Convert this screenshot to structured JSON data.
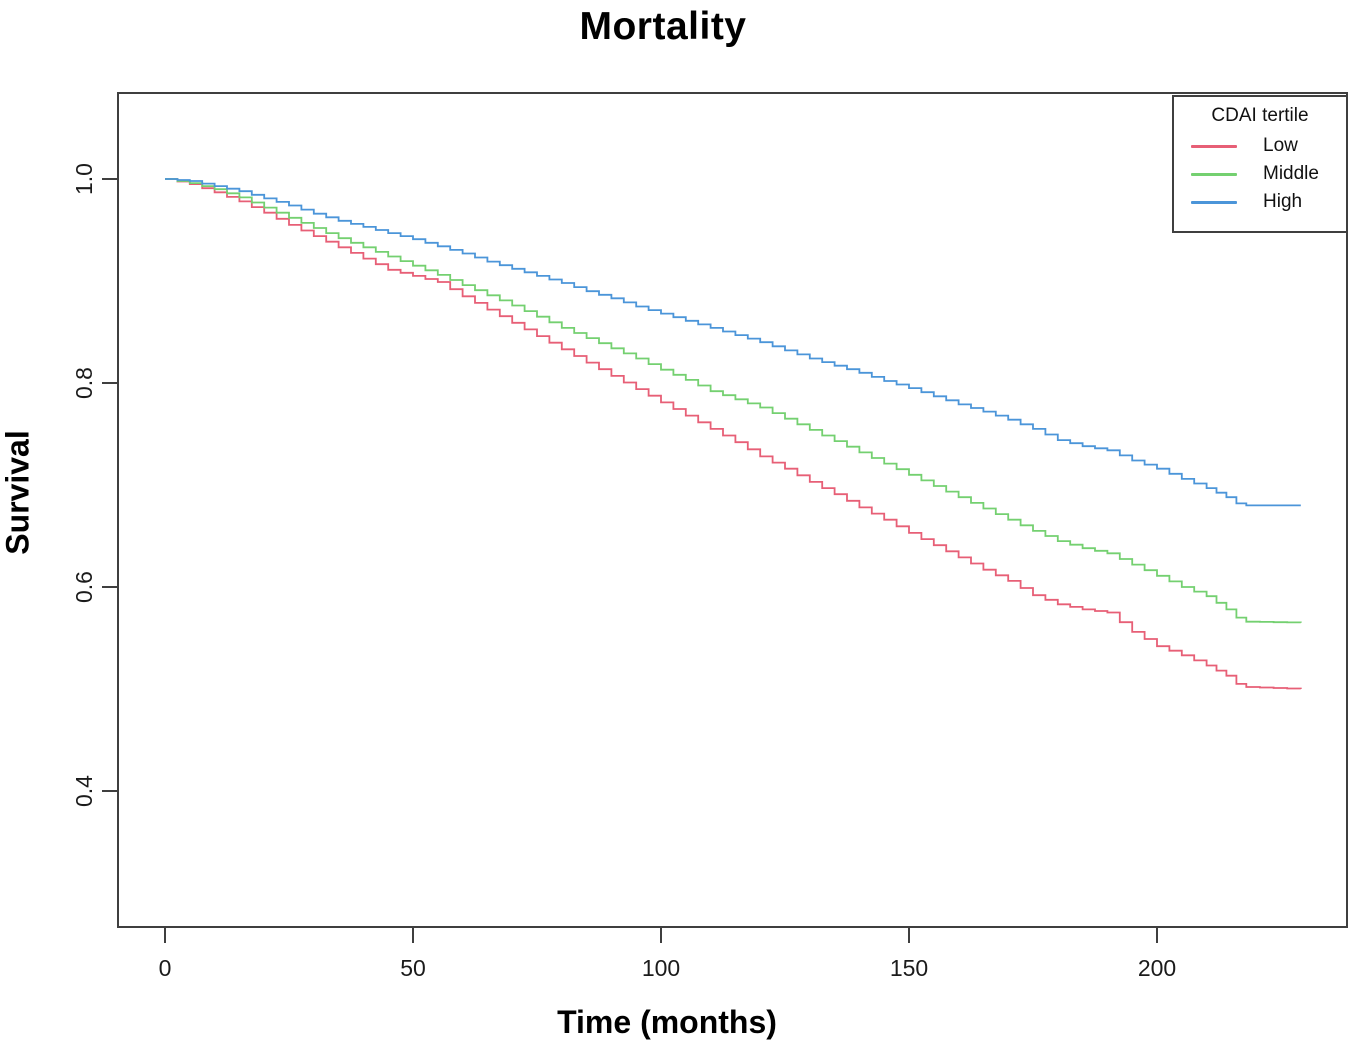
{
  "title": "Mortality",
  "chart_data": {
    "type": "line",
    "subtype": "kaplan-meier-step-curves",
    "title": "Mortality",
    "xlabel": "Time (months)",
    "ylabel": "Survival",
    "grid": false,
    "xlim": [
      0,
      229
    ],
    "ylim": [
      0.27,
      1.08
    ],
    "x_ticks": [
      {
        "value": 0,
        "label": "0"
      },
      {
        "value": 50,
        "label": "50"
      },
      {
        "value": 100,
        "label": "100"
      },
      {
        "value": 150,
        "label": "150"
      },
      {
        "value": 200,
        "label": "200"
      }
    ],
    "y_ticks": [
      {
        "value": 1.0,
        "label": "1.0"
      },
      {
        "value": 0.8,
        "label": "0.8"
      },
      {
        "value": 0.6,
        "label": "0.6"
      },
      {
        "value": 0.4,
        "label": "0.4"
      }
    ],
    "legend": {
      "title": "CDAI tertile",
      "position": "top-right"
    },
    "series": [
      {
        "name": "Low",
        "color": "#e75f76",
        "points": [
          [
            0,
            1.0
          ],
          [
            5,
            0.995
          ],
          [
            10,
            0.987
          ],
          [
            15,
            0.978
          ],
          [
            20,
            0.967
          ],
          [
            25,
            0.955
          ],
          [
            30,
            0.944
          ],
          [
            35,
            0.933
          ],
          [
            40,
            0.922
          ],
          [
            45,
            0.911
          ],
          [
            50,
            0.905
          ],
          [
            55,
            0.899
          ],
          [
            60,
            0.885
          ],
          [
            65,
            0.872
          ],
          [
            70,
            0.859
          ],
          [
            75,
            0.846
          ],
          [
            80,
            0.833
          ],
          [
            85,
            0.82
          ],
          [
            90,
            0.807
          ],
          [
            95,
            0.794
          ],
          [
            100,
            0.781
          ],
          [
            105,
            0.768
          ],
          [
            110,
            0.755
          ],
          [
            115,
            0.742
          ],
          [
            120,
            0.728
          ],
          [
            125,
            0.716
          ],
          [
            130,
            0.703
          ],
          [
            135,
            0.691
          ],
          [
            140,
            0.678
          ],
          [
            145,
            0.666
          ],
          [
            150,
            0.653
          ],
          [
            155,
            0.641
          ],
          [
            160,
            0.629
          ],
          [
            165,
            0.617
          ],
          [
            170,
            0.606
          ],
          [
            175,
            0.592
          ],
          [
            180,
            0.583
          ],
          [
            185,
            0.578
          ],
          [
            190,
            0.575
          ],
          [
            195,
            0.556
          ],
          [
            200,
            0.542
          ],
          [
            205,
            0.533
          ],
          [
            210,
            0.523
          ],
          [
            214,
            0.513
          ],
          [
            216,
            0.505
          ],
          [
            218,
            0.502
          ],
          [
            229,
            0.5
          ]
        ]
      },
      {
        "name": "Middle",
        "color": "#74d070",
        "points": [
          [
            0,
            1.0
          ],
          [
            5,
            0.996
          ],
          [
            10,
            0.99
          ],
          [
            15,
            0.982
          ],
          [
            20,
            0.972
          ],
          [
            25,
            0.962
          ],
          [
            30,
            0.952
          ],
          [
            35,
            0.942
          ],
          [
            40,
            0.933
          ],
          [
            45,
            0.924
          ],
          [
            50,
            0.915
          ],
          [
            55,
            0.906
          ],
          [
            60,
            0.896
          ],
          [
            65,
            0.886
          ],
          [
            70,
            0.876
          ],
          [
            75,
            0.865
          ],
          [
            80,
            0.854
          ],
          [
            85,
            0.844
          ],
          [
            90,
            0.834
          ],
          [
            95,
            0.824
          ],
          [
            100,
            0.813
          ],
          [
            105,
            0.803
          ],
          [
            110,
            0.792
          ],
          [
            115,
            0.784
          ],
          [
            120,
            0.776
          ],
          [
            125,
            0.765
          ],
          [
            130,
            0.754
          ],
          [
            135,
            0.743
          ],
          [
            140,
            0.732
          ],
          [
            145,
            0.721
          ],
          [
            150,
            0.71
          ],
          [
            155,
            0.699
          ],
          [
            160,
            0.688
          ],
          [
            165,
            0.677
          ],
          [
            170,
            0.666
          ],
          [
            175,
            0.655
          ],
          [
            180,
            0.645
          ],
          [
            185,
            0.638
          ],
          [
            190,
            0.633
          ],
          [
            195,
            0.622
          ],
          [
            200,
            0.611
          ],
          [
            205,
            0.6
          ],
          [
            210,
            0.591
          ],
          [
            214,
            0.578
          ],
          [
            216,
            0.57
          ],
          [
            218,
            0.566
          ],
          [
            229,
            0.565
          ]
        ]
      },
      {
        "name": "High",
        "color": "#4b95d9",
        "points": [
          [
            0,
            1.0
          ],
          [
            5,
            0.998
          ],
          [
            10,
            0.993
          ],
          [
            15,
            0.988
          ],
          [
            20,
            0.981
          ],
          [
            25,
            0.974
          ],
          [
            30,
            0.966
          ],
          [
            35,
            0.959
          ],
          [
            40,
            0.953
          ],
          [
            45,
            0.947
          ],
          [
            50,
            0.941
          ],
          [
            55,
            0.934
          ],
          [
            60,
            0.927
          ],
          [
            65,
            0.919
          ],
          [
            70,
            0.912
          ],
          [
            75,
            0.905
          ],
          [
            80,
            0.898
          ],
          [
            85,
            0.89
          ],
          [
            90,
            0.883
          ],
          [
            95,
            0.875
          ],
          [
            100,
            0.868
          ],
          [
            105,
            0.861
          ],
          [
            110,
            0.854
          ],
          [
            115,
            0.847
          ],
          [
            120,
            0.84
          ],
          [
            125,
            0.832
          ],
          [
            130,
            0.824
          ],
          [
            135,
            0.817
          ],
          [
            140,
            0.81
          ],
          [
            145,
            0.802
          ],
          [
            150,
            0.795
          ],
          [
            155,
            0.787
          ],
          [
            160,
            0.779
          ],
          [
            165,
            0.772
          ],
          [
            170,
            0.764
          ],
          [
            175,
            0.755
          ],
          [
            180,
            0.744
          ],
          [
            185,
            0.738
          ],
          [
            190,
            0.734
          ],
          [
            195,
            0.724
          ],
          [
            200,
            0.716
          ],
          [
            205,
            0.706
          ],
          [
            210,
            0.697
          ],
          [
            214,
            0.688
          ],
          [
            216,
            0.682
          ],
          [
            218,
            0.68
          ],
          [
            229,
            0.68
          ]
        ]
      }
    ]
  }
}
